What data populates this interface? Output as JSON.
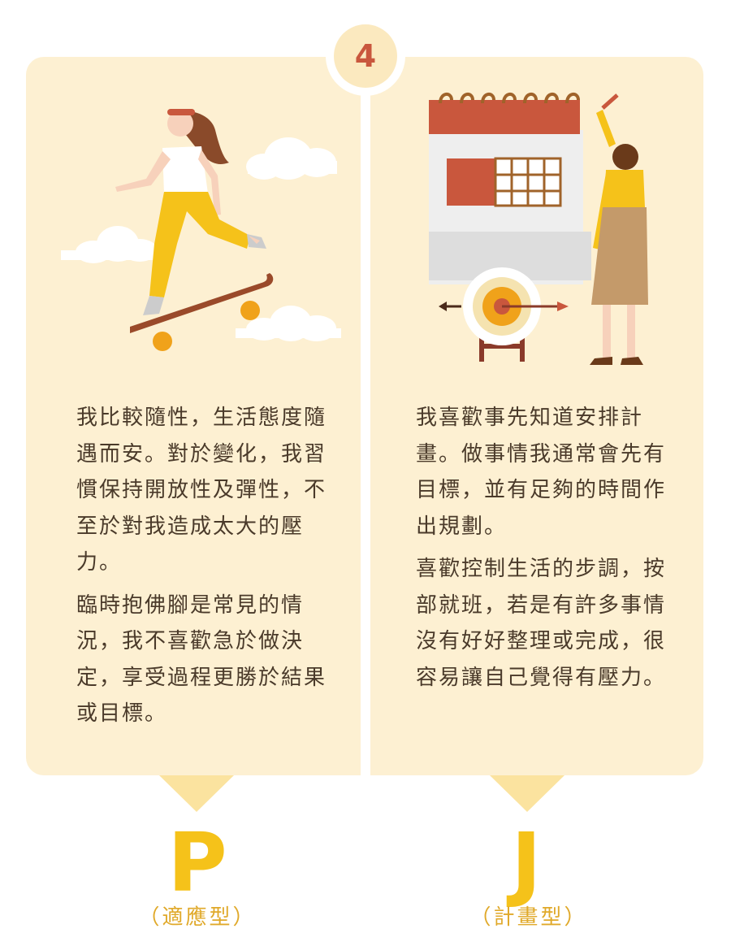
{
  "badge": {
    "number": "4"
  },
  "left": {
    "paragraphs": [
      "我比較隨性，生活態度隨遇而安。對於變化，我習慣保持開放性及彈性，不至於對我造成太大的壓力。",
      "臨時抱佛腳是常見的情況，我不喜歡急於做決定，享受過程更勝於結果或目標。"
    ],
    "letter": "P",
    "type_label": "（適應型）"
  },
  "right": {
    "paragraphs": [
      "我喜歡事先知道安排計畫。做事情我通常會先有目標，並有足夠的時間作出規劃。",
      "喜歡控制生活的步調，按部就班，若是有許多事情沒有好好整理或完成，很容易讓自己覺得有壓力。"
    ],
    "letter": "J",
    "type_label": "（計畫型）"
  },
  "colors": {
    "panel_bg": "#fdf0d2",
    "badge_number": "#c9573d",
    "letter_accent": "#f5c21a",
    "label_accent": "#e0a92a",
    "pointer": "#fbe39f",
    "text": "#4a3a2a"
  },
  "icons": {
    "left_illustration": "skateboarding-woman-illustration",
    "right_illustration": "planning-calendar-target-illustration"
  }
}
